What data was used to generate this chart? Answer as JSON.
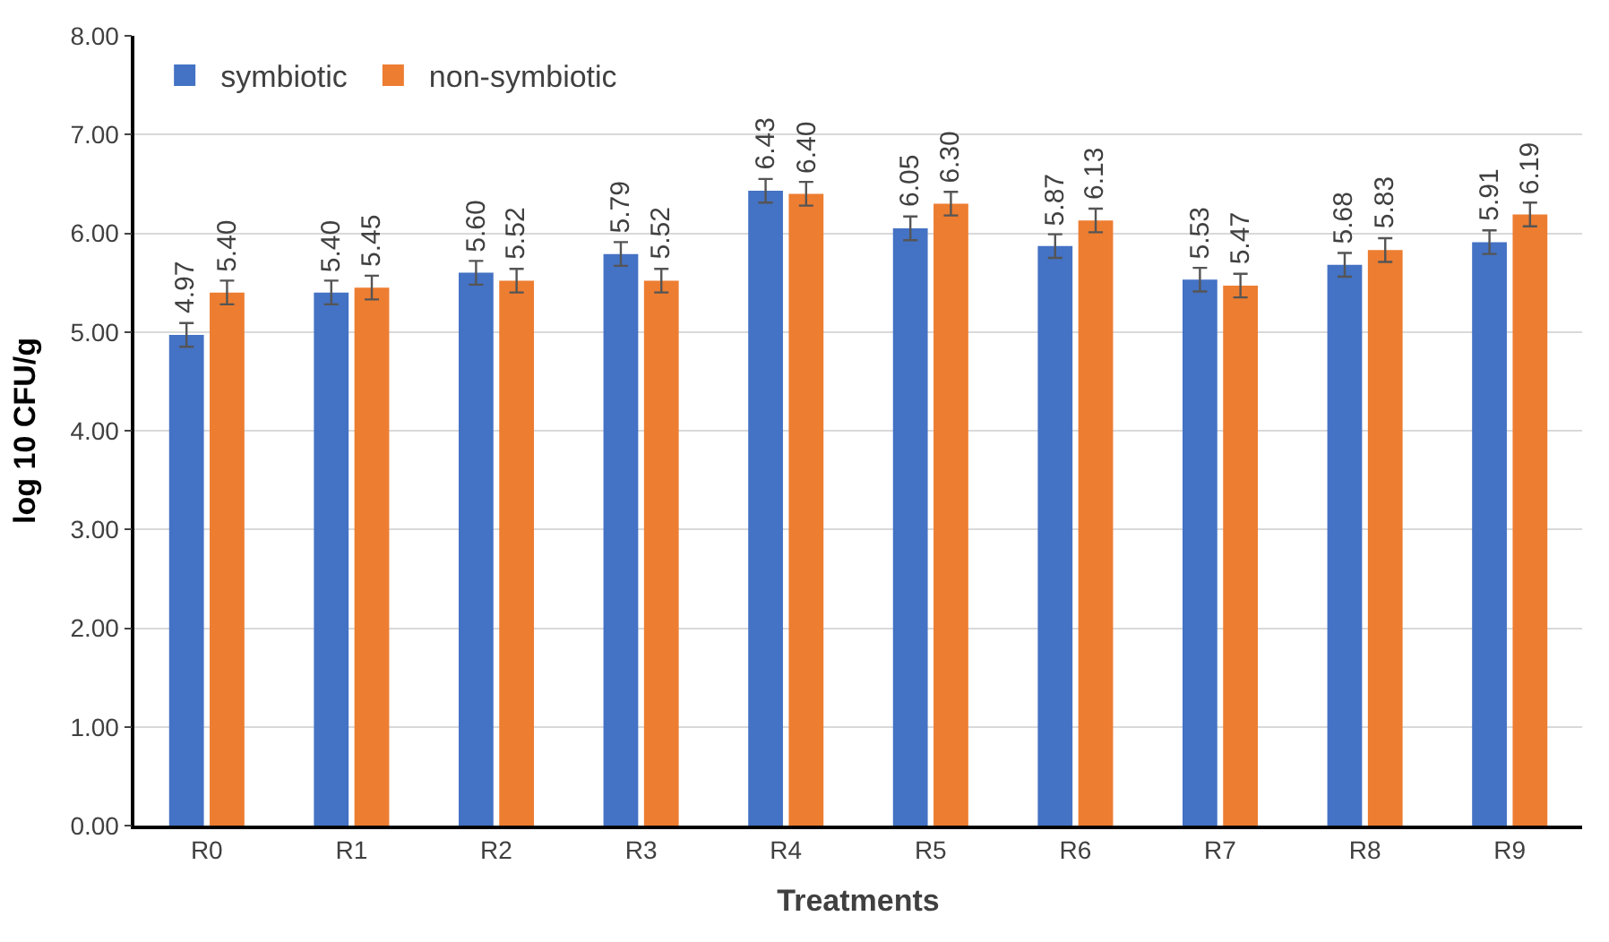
{
  "chart_data": {
    "type": "bar",
    "xlabel": "Treatments",
    "ylabel": "log 10 CFU/g",
    "categories": [
      "R0",
      "R1",
      "R2",
      "R3",
      "R4",
      "R5",
      "R6",
      "R7",
      "R8",
      "R9"
    ],
    "series": [
      {
        "name": "symbiotic",
        "color": "#4472c4",
        "values": [
          4.97,
          5.4,
          5.6,
          5.79,
          6.43,
          6.05,
          5.87,
          5.53,
          5.68,
          5.91
        ],
        "value_labels": [
          "4.97",
          "5.40",
          "5.60",
          "5.79",
          "6.43",
          "6.05",
          "5.87",
          "5.53",
          "5.68",
          "5.91"
        ],
        "errors": [
          0.12,
          0.12,
          0.12,
          0.12,
          0.12,
          0.12,
          0.12,
          0.12,
          0.12,
          0.12
        ]
      },
      {
        "name": "non-symbiotic",
        "color": "#ed7d31",
        "values": [
          5.4,
          5.45,
          5.52,
          5.52,
          6.4,
          6.3,
          6.13,
          5.47,
          5.83,
          6.19
        ],
        "value_labels": [
          "5.40",
          "5.45",
          "5.52",
          "5.52",
          "6.40",
          "6.30",
          "6.13",
          "5.47",
          "5.83",
          "6.19"
        ],
        "errors": [
          0.12,
          0.12,
          0.12,
          0.12,
          0.12,
          0.12,
          0.12,
          0.12,
          0.12,
          0.12
        ]
      }
    ],
    "ylim": [
      0,
      8
    ],
    "yticks": [
      {
        "value": 0,
        "label": "0.00"
      },
      {
        "value": 1,
        "label": "1.00"
      },
      {
        "value": 2,
        "label": "2.00"
      },
      {
        "value": 3,
        "label": "3.00"
      },
      {
        "value": 4,
        "label": "4.00"
      },
      {
        "value": 5,
        "label": "5.00"
      },
      {
        "value": 6,
        "label": "6.00"
      },
      {
        "value": 7,
        "label": "7.00"
      },
      {
        "value": 8,
        "label": "8.00"
      }
    ],
    "grid": "y",
    "legend": "top left"
  }
}
